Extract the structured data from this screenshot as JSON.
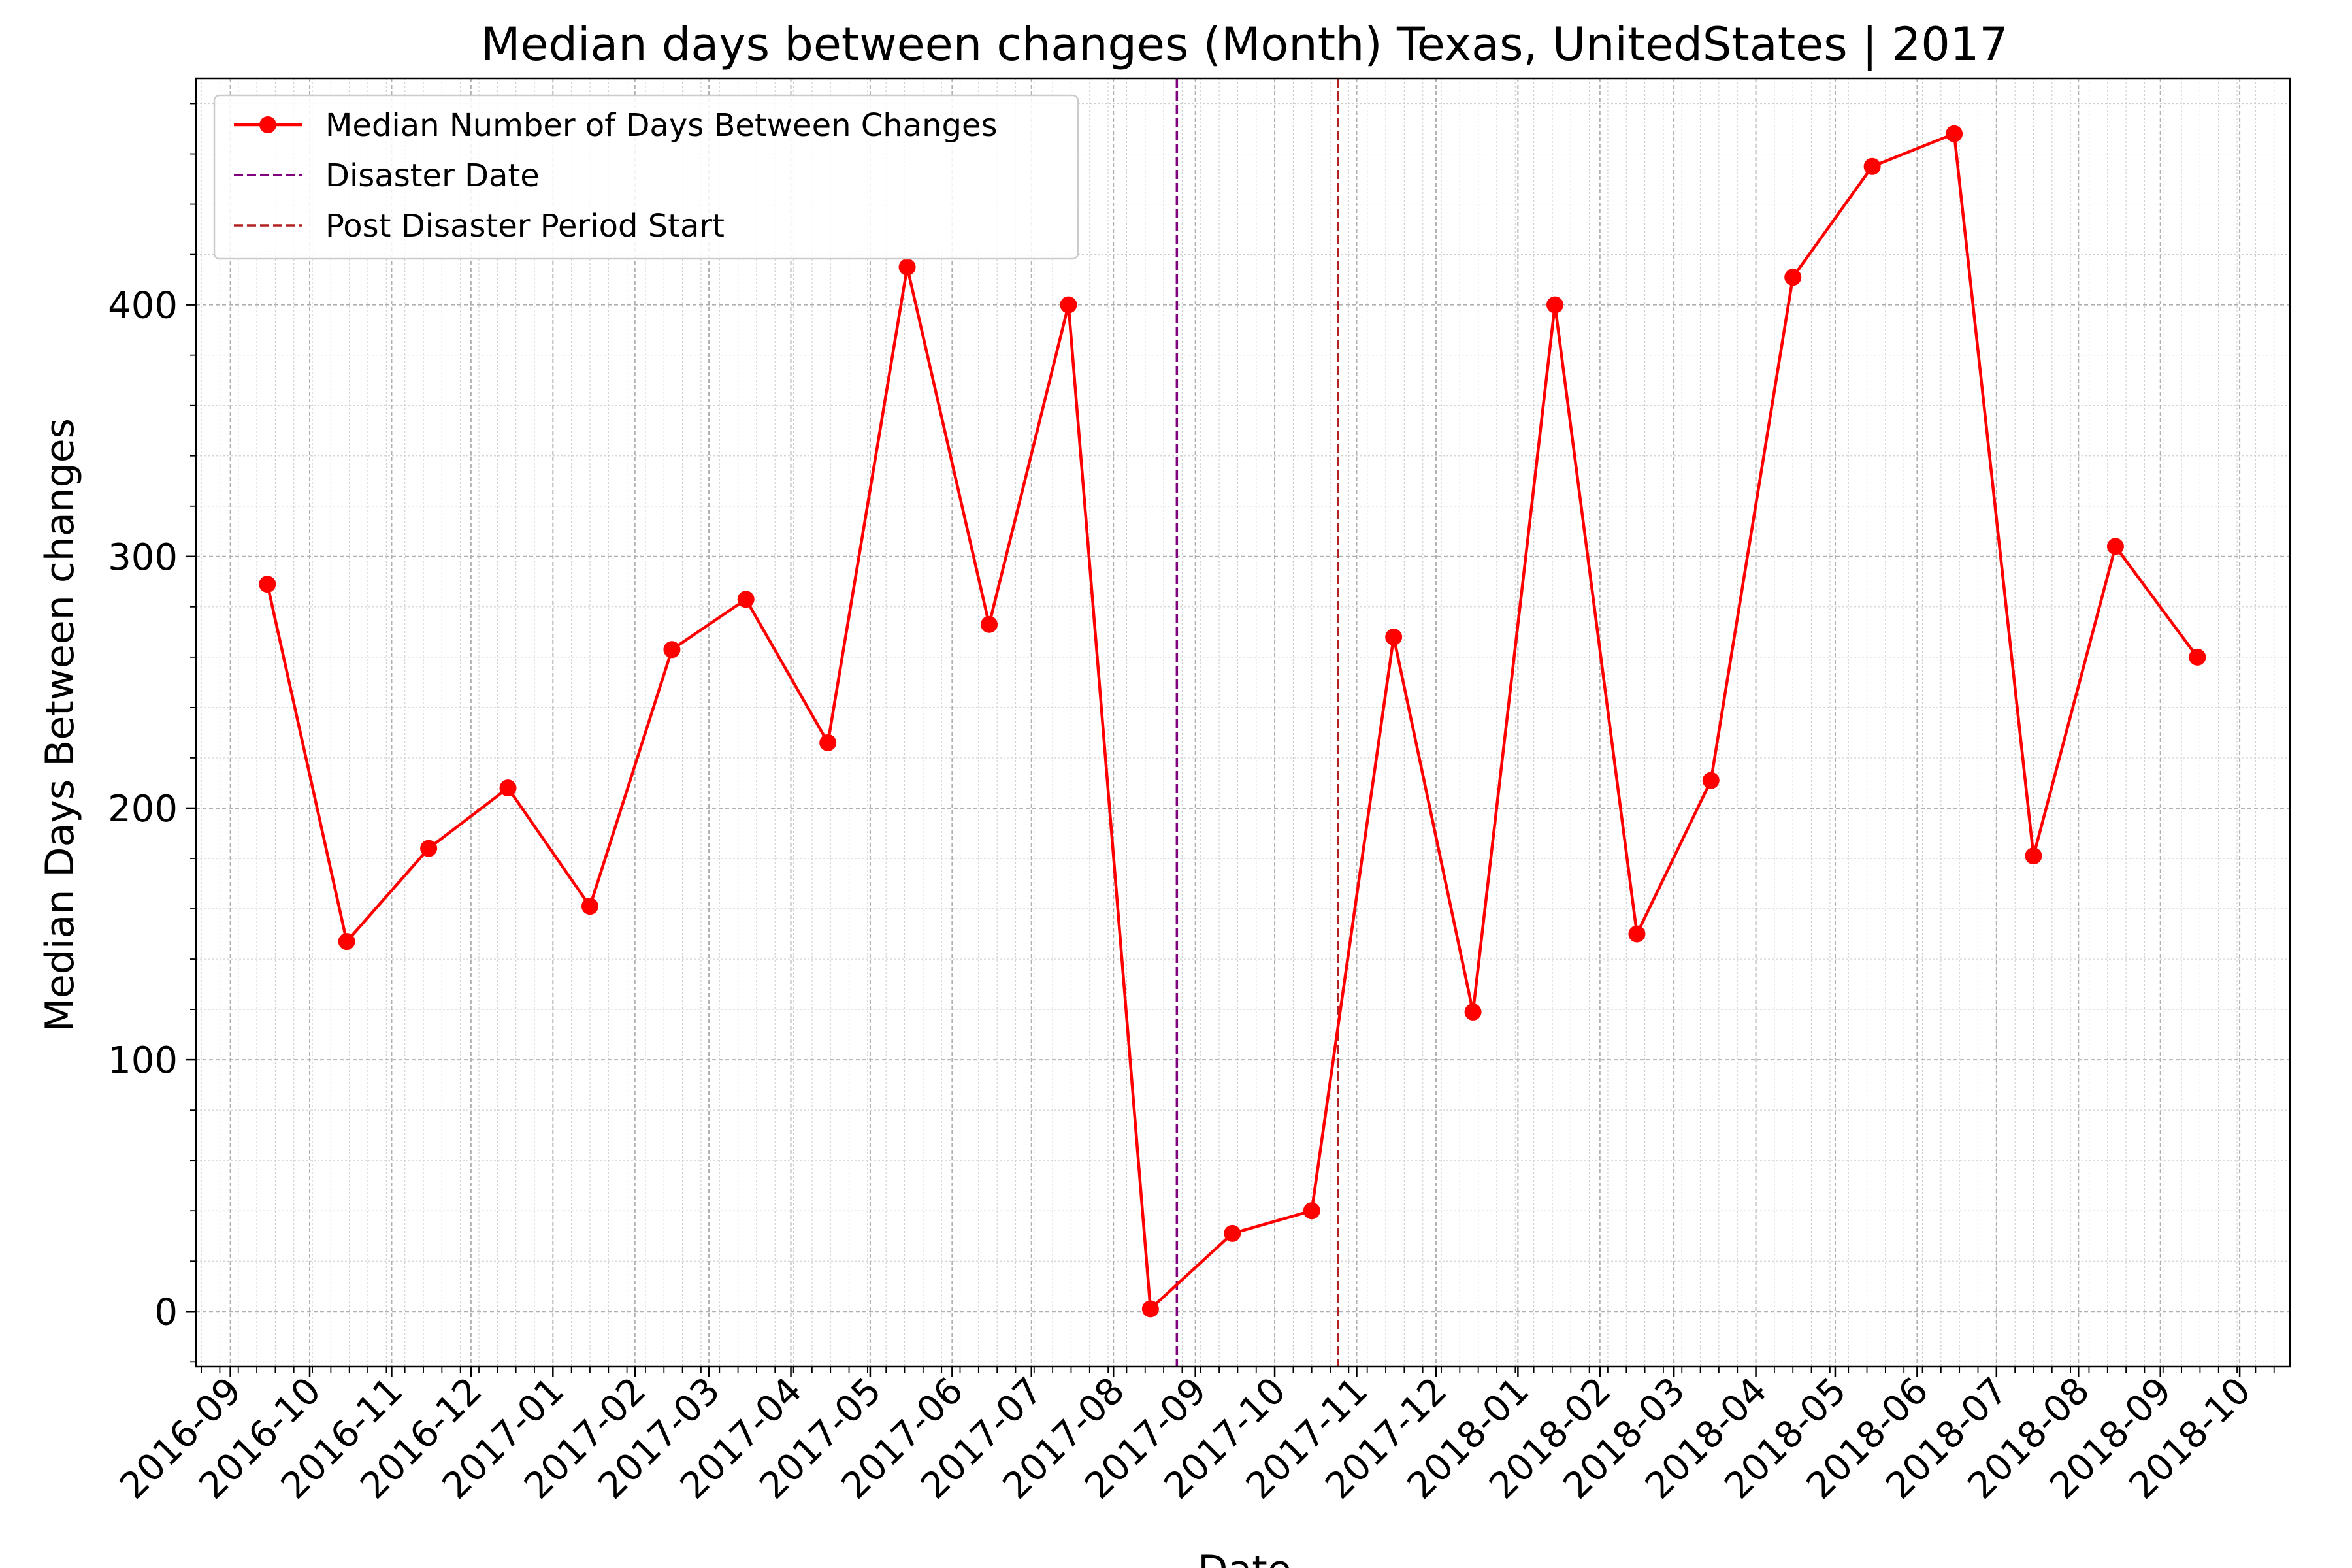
{
  "chart_data": {
    "type": "line",
    "title": "Median days between changes (Month) Texas, UnitedStates | 2017",
    "xlabel": "Date",
    "ylabel": "Median Days Between changes",
    "ylim": [
      -22,
      490
    ],
    "yticks": [
      0,
      100,
      200,
      300,
      400
    ],
    "xticks": [
      "2016-09",
      "2016-10",
      "2016-11",
      "2016-12",
      "2017-01",
      "2017-02",
      "2017-03",
      "2017-04",
      "2017-05",
      "2017-06",
      "2017-07",
      "2017-08",
      "2017-09",
      "2017-10",
      "2017-11",
      "2017-12",
      "2018-01",
      "2018-02",
      "2018-03",
      "2018-04",
      "2018-05",
      "2018-06",
      "2018-07",
      "2018-08",
      "2018-09",
      "2018-10"
    ],
    "xlim": [
      "2016-08-19",
      "2018-10-20"
    ],
    "grid": true,
    "legend_position": "top-left",
    "series": [
      {
        "name": "Median Number of Days Between Changes",
        "color": "#ff0000",
        "marker": "circle",
        "points": [
          {
            "x": "2016-09-15",
            "y": 289
          },
          {
            "x": "2016-10-15",
            "y": 147
          },
          {
            "x": "2016-11-15",
            "y": 184
          },
          {
            "x": "2016-12-15",
            "y": 208
          },
          {
            "x": "2017-01-15",
            "y": 161
          },
          {
            "x": "2017-02-15",
            "y": 263
          },
          {
            "x": "2017-03-15",
            "y": 283
          },
          {
            "x": "2017-04-15",
            "y": 226
          },
          {
            "x": "2017-05-15",
            "y": 415
          },
          {
            "x": "2017-06-15",
            "y": 273
          },
          {
            "x": "2017-07-15",
            "y": 400
          },
          {
            "x": "2017-08-15",
            "y": 1
          },
          {
            "x": "2017-09-15",
            "y": 31
          },
          {
            "x": "2017-10-15",
            "y": 40
          },
          {
            "x": "2017-11-15",
            "y": 268
          },
          {
            "x": "2017-12-15",
            "y": 119
          },
          {
            "x": "2018-01-15",
            "y": 400
          },
          {
            "x": "2018-02-15",
            "y": 150
          },
          {
            "x": "2018-03-15",
            "y": 211
          },
          {
            "x": "2018-04-15",
            "y": 411
          },
          {
            "x": "2018-05-15",
            "y": 455
          },
          {
            "x": "2018-06-15",
            "y": 468
          },
          {
            "x": "2018-07-15",
            "y": 181
          },
          {
            "x": "2018-08-15",
            "y": 304
          },
          {
            "x": "2018-09-15",
            "y": 260
          }
        ]
      }
    ],
    "vlines": [
      {
        "name": "Disaster Date",
        "x": "2017-08-25",
        "color": "#800080",
        "style": "dashed"
      },
      {
        "name": "Post Disaster Period Start",
        "x": "2017-10-25",
        "color": "#b22222",
        "style": "dashed"
      }
    ]
  }
}
